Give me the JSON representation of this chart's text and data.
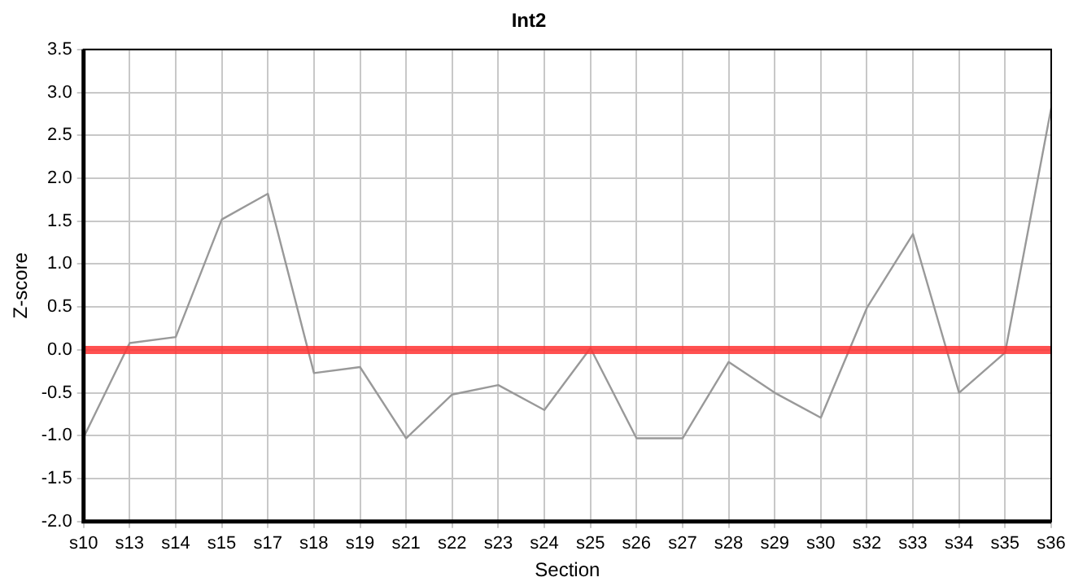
{
  "chart_data": {
    "type": "line",
    "title": "Int2",
    "xlabel": "Section",
    "ylabel": "Z-score",
    "categories": [
      "s10",
      "s13",
      "s14",
      "s15",
      "s17",
      "s18",
      "s19",
      "s21",
      "s22",
      "s23",
      "s24",
      "s25",
      "s26",
      "s27",
      "s28",
      "s29",
      "s30",
      "s32",
      "s33",
      "s34",
      "s35",
      "s36"
    ],
    "series": [
      {
        "color": "#999999",
        "values": [
          -1.02,
          0.08,
          0.15,
          1.52,
          1.82,
          -0.27,
          -0.2,
          -1.03,
          -0.52,
          -0.41,
          -0.7,
          0.02,
          -1.03,
          -1.03,
          -0.14,
          -0.5,
          -0.79,
          0.49,
          1.35,
          -0.5,
          -0.03,
          2.82
        ]
      }
    ],
    "ylim": [
      -2,
      3.5
    ],
    "yticks": [
      {
        "value": -2,
        "label": "-2.0"
      },
      {
        "value": -1.5,
        "label": "-1.5"
      },
      {
        "value": -1,
        "label": "-1.0"
      },
      {
        "value": -0.5,
        "label": "-0.5"
      },
      {
        "value": 0,
        "label": "0.0"
      },
      {
        "value": 0.5,
        "label": "0.5"
      },
      {
        "value": 1,
        "label": "1.0"
      },
      {
        "value": 1.5,
        "label": "1.5"
      },
      {
        "value": 2,
        "label": "2.0"
      },
      {
        "value": 2.5,
        "label": "2.5"
      },
      {
        "value": 3,
        "label": "3.0"
      },
      {
        "value": 3.5,
        "label": "3.5"
      }
    ],
    "ref_lines": [
      {
        "axis": "y",
        "value": 0,
        "color": "#ff3333"
      }
    ],
    "grid": true,
    "legend": false,
    "marker": "none",
    "line_style": "solid"
  }
}
